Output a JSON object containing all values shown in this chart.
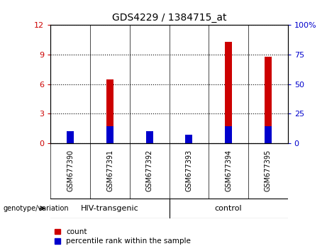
{
  "title": "GDS4229 / 1384715_at",
  "samples": [
    "GSM677390",
    "GSM677391",
    "GSM677392",
    "GSM677393",
    "GSM677394",
    "GSM677395"
  ],
  "count_values": [
    1.2,
    6.5,
    1.2,
    0.35,
    10.3,
    8.8
  ],
  "percentile_values": [
    1.2,
    1.68,
    1.2,
    0.84,
    1.68,
    1.68
  ],
  "left_ylim": [
    0,
    12
  ],
  "right_ylim": [
    0,
    100
  ],
  "left_yticks": [
    0,
    3,
    6,
    9,
    12
  ],
  "right_yticks": [
    0,
    25,
    50,
    75,
    100
  ],
  "right_yticklabels": [
    "0",
    "25",
    "50",
    "75",
    "100%"
  ],
  "left_ycolor": "#cc0000",
  "right_ycolor": "#0000cc",
  "bar_width": 0.18,
  "count_color": "#cc0000",
  "percentile_color": "#0000cc",
  "group_labels": [
    "HIV-transgenic",
    "control"
  ],
  "group_boundaries": [
    0,
    3,
    6
  ],
  "genotype_label": "genotype/variation",
  "legend_entries": [
    "count",
    "percentile rank within the sample"
  ],
  "group_area_color": "#90ee90",
  "tick_area_color": "#d3d3d3",
  "separator_color": "#000000"
}
